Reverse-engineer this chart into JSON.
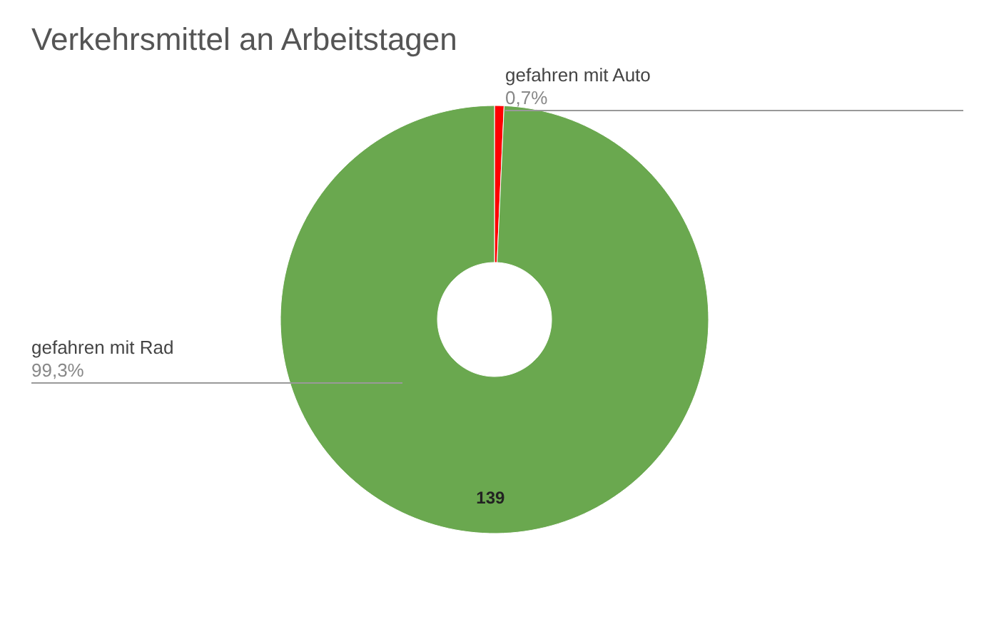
{
  "chart_data": {
    "type": "donut",
    "title": "Verkehrsmittel an Arbeitstagen",
    "categories": [
      "gefahren mit Auto",
      "gefahren mit Rad"
    ],
    "values": [
      1,
      139
    ],
    "colors": [
      "#ff0000",
      "#6aa84f"
    ],
    "value_labels": [
      null,
      "139"
    ],
    "annotations": [
      "0,7%",
      "99,3%"
    ],
    "legend": false
  }
}
